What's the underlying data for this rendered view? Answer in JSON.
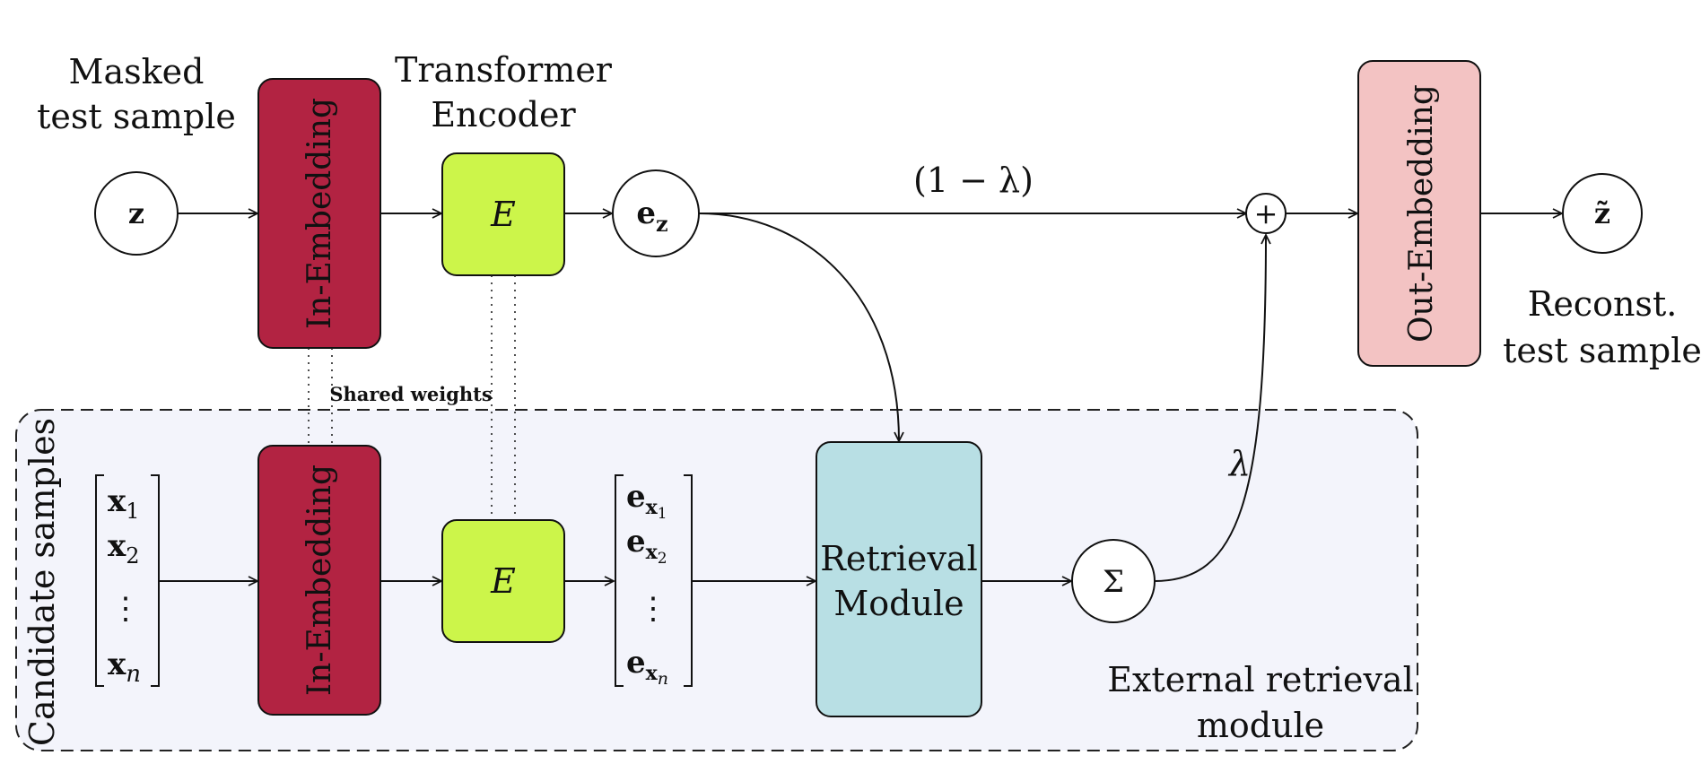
{
  "labels": {
    "masked_line1": "Masked",
    "masked_line2": "test sample",
    "transformer_line1": "Transformer",
    "transformer_line2": "Encoder",
    "shared_weights": "Shared weights",
    "one_minus_lambda": "(1 − λ)",
    "lambda": "λ",
    "reconst_line1": "Reconst.",
    "reconst_line2": "test sample",
    "candidate_samples": "Candidate samples",
    "external_line1": "External retrieval",
    "external_line2": "module"
  },
  "nodes": {
    "z": "z",
    "ez_main": "e",
    "ez_sub": "z",
    "plus": "+",
    "z_tilde": "z̃",
    "sigma": "Σ"
  },
  "blocks": {
    "in_embedding_top": "In-Embedding",
    "encoder_top": "E",
    "out_embedding": "Out-Embedding",
    "in_embedding_bottom": "In-Embedding",
    "encoder_bottom": "E",
    "retrieval_line1": "Retrieval",
    "retrieval_line2": "Module"
  },
  "vectors": {
    "x": [
      {
        "main": "x",
        "sub": "1"
      },
      {
        "main": "x",
        "sub": "2"
      },
      {
        "main": "⋮",
        "sub": ""
      },
      {
        "main": "x",
        "sub": "n"
      }
    ],
    "e": [
      {
        "main": "e",
        "sub": "x",
        "subsub": "1"
      },
      {
        "main": "e",
        "sub": "x",
        "subsub": "2"
      },
      {
        "main": "⋮",
        "sub": "",
        "subsub": ""
      },
      {
        "main": "e",
        "sub": "x",
        "subsub": "n"
      }
    ]
  },
  "colors": {
    "in_embedding": "#b22342",
    "encoder": "#ccf54a",
    "out_embedding": "#f3c3c3",
    "retrieval": "#b8dfe4",
    "external_region": "#f3f4fb"
  }
}
